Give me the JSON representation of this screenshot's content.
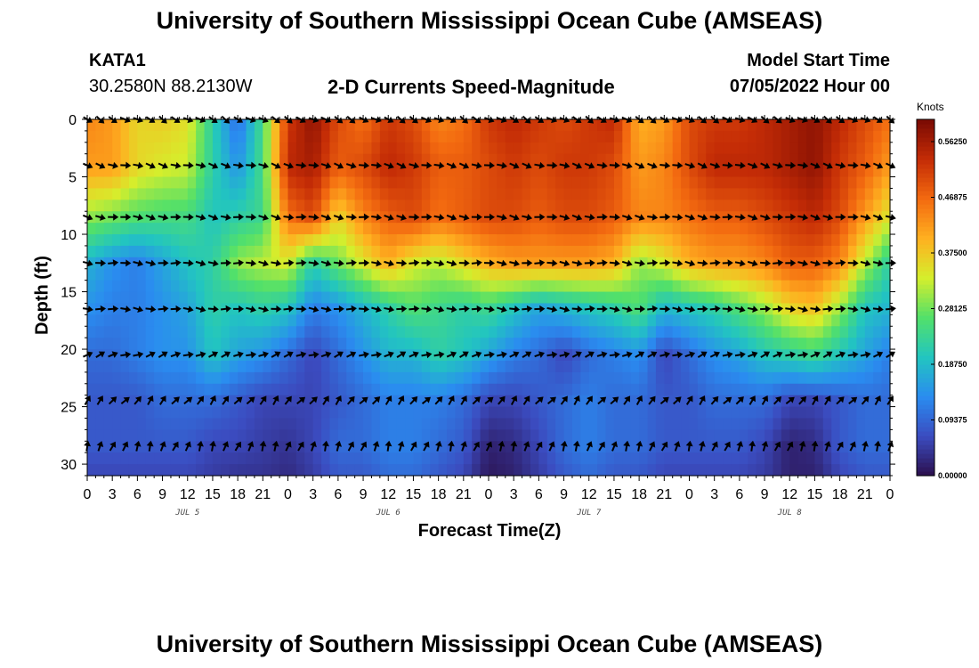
{
  "title": "University of Southern Mississippi Ocean Cube (AMSEAS)",
  "station": {
    "id": "KATA1",
    "coords": "30.2580N  88.2130W"
  },
  "subtitle": "2-D Currents Speed-Magnitude",
  "model": {
    "label": "Model Start Time",
    "value": "07/05/2022 Hour 00"
  },
  "footer_title": "University of Southern Mississippi Ocean Cube (AMSEAS)",
  "chart_data": {
    "type": "heatmap",
    "title": "2-D Currents Speed-Magnitude",
    "xlabel": "Forecast Time(Z)",
    "ylabel": "Depth (ft)",
    "x_unit": "hours from model start",
    "xlim": [
      0,
      96
    ],
    "ylim": [
      31,
      0
    ],
    "x_ticks": [
      0,
      3,
      6,
      9,
      12,
      15,
      18,
      21,
      24,
      27,
      30,
      33,
      36,
      39,
      42,
      45,
      48,
      51,
      54,
      57,
      60,
      63,
      66,
      69,
      72,
      75,
      78,
      81,
      84,
      87,
      90,
      93,
      96
    ],
    "x_tick_labels": [
      "0",
      "3",
      "6",
      "9",
      "12",
      "15",
      "18",
      "21",
      "0",
      "3",
      "6",
      "9",
      "12",
      "15",
      "18",
      "21",
      "0",
      "3",
      "6",
      "9",
      "12",
      "15",
      "18",
      "21",
      "0",
      "3",
      "6",
      "9",
      "12",
      "15",
      "18",
      "21",
      "0"
    ],
    "day_labels": [
      {
        "hour": 12,
        "text": "JUL 5"
      },
      {
        "hour": 36,
        "text": "JUL 6"
      },
      {
        "hour": 60,
        "text": "JUL 7"
      },
      {
        "hour": 84,
        "text": "JUL 8"
      }
    ],
    "y_ticks": [
      0,
      5,
      10,
      15,
      20,
      25,
      30
    ],
    "y_tick_labels": [
      "0",
      "5",
      "10",
      "15",
      "20",
      "25",
      "30"
    ],
    "colorbar": {
      "unit": "Knots",
      "min": 0.0,
      "max": 0.6,
      "tick_values": [
        0.0,
        0.09375,
        0.1875,
        0.28125,
        0.375,
        0.46875,
        0.5625
      ],
      "tick_labels": [
        "0.00000",
        "0.09375",
        "0.18750",
        "0.28125",
        "0.37500",
        "0.46875",
        "0.56250"
      ],
      "colors": [
        "#2b0f4c",
        "#3b4cc0",
        "#2a8cf0",
        "#22c5c0",
        "#52e06a",
        "#d5ee2c",
        "#ffb020",
        "#f36a10",
        "#c42c06",
        "#7a0a03"
      ]
    },
    "speed_anchor_hours": [
      0,
      3,
      6,
      9,
      12,
      15,
      18,
      21,
      24,
      27,
      30,
      33,
      36,
      39,
      42,
      45,
      48,
      51,
      54,
      57,
      60,
      63,
      66,
      69,
      72,
      75,
      78,
      81,
      84,
      87,
      90,
      93,
      96
    ],
    "speed_anchor_depths": [
      0,
      4,
      8.5,
      12.5,
      16.5,
      20.5,
      24.5,
      28.5,
      31
    ],
    "speed_knots": [
      [
        0.44,
        0.42,
        0.36,
        0.37,
        0.35,
        0.22,
        0.1,
        0.25,
        0.52,
        0.58,
        0.5,
        0.46,
        0.52,
        0.5,
        0.44,
        0.46,
        0.52,
        0.54,
        0.52,
        0.5,
        0.52,
        0.54,
        0.4,
        0.42,
        0.5,
        0.52,
        0.52,
        0.54,
        0.56,
        0.58,
        0.54,
        0.5,
        0.46
      ],
      [
        0.42,
        0.42,
        0.36,
        0.34,
        0.33,
        0.22,
        0.14,
        0.25,
        0.54,
        0.56,
        0.48,
        0.5,
        0.54,
        0.52,
        0.48,
        0.48,
        0.5,
        0.52,
        0.5,
        0.52,
        0.52,
        0.5,
        0.42,
        0.44,
        0.5,
        0.54,
        0.54,
        0.54,
        0.56,
        0.58,
        0.52,
        0.48,
        0.42
      ],
      [
        0.3,
        0.28,
        0.26,
        0.25,
        0.25,
        0.2,
        0.22,
        0.24,
        0.46,
        0.5,
        0.36,
        0.44,
        0.48,
        0.5,
        0.46,
        0.48,
        0.5,
        0.5,
        0.48,
        0.5,
        0.5,
        0.48,
        0.44,
        0.44,
        0.46,
        0.48,
        0.48,
        0.5,
        0.52,
        0.54,
        0.5,
        0.42,
        0.34
      ],
      [
        0.18,
        0.14,
        0.12,
        0.16,
        0.2,
        0.22,
        0.3,
        0.32,
        0.34,
        0.22,
        0.28,
        0.34,
        0.4,
        0.34,
        0.32,
        0.36,
        0.4,
        0.42,
        0.42,
        0.42,
        0.42,
        0.4,
        0.3,
        0.34,
        0.4,
        0.42,
        0.42,
        0.44,
        0.48,
        0.48,
        0.44,
        0.32,
        0.22
      ],
      [
        0.14,
        0.12,
        0.12,
        0.14,
        0.16,
        0.22,
        0.2,
        0.22,
        0.2,
        0.12,
        0.14,
        0.18,
        0.22,
        0.26,
        0.24,
        0.22,
        0.24,
        0.2,
        0.16,
        0.18,
        0.2,
        0.22,
        0.26,
        0.18,
        0.2,
        0.22,
        0.26,
        0.3,
        0.36,
        0.38,
        0.3,
        0.2,
        0.18
      ],
      [
        0.1,
        0.1,
        0.12,
        0.14,
        0.14,
        0.2,
        0.16,
        0.14,
        0.1,
        0.06,
        0.1,
        0.14,
        0.18,
        0.18,
        0.22,
        0.2,
        0.16,
        0.12,
        0.1,
        0.06,
        0.1,
        0.12,
        0.14,
        0.06,
        0.1,
        0.14,
        0.16,
        0.2,
        0.22,
        0.24,
        0.2,
        0.16,
        0.12
      ],
      [
        0.08,
        0.08,
        0.08,
        0.1,
        0.1,
        0.1,
        0.08,
        0.06,
        0.06,
        0.06,
        0.08,
        0.1,
        0.12,
        0.12,
        0.12,
        0.1,
        0.06,
        0.06,
        0.08,
        0.1,
        0.12,
        0.1,
        0.1,
        0.08,
        0.08,
        0.1,
        0.1,
        0.1,
        0.06,
        0.06,
        0.08,
        0.1,
        0.1
      ],
      [
        0.08,
        0.08,
        0.08,
        0.08,
        0.08,
        0.06,
        0.06,
        0.05,
        0.04,
        0.06,
        0.1,
        0.1,
        0.12,
        0.12,
        0.1,
        0.08,
        0.02,
        0.03,
        0.06,
        0.1,
        0.12,
        0.1,
        0.1,
        0.08,
        0.08,
        0.08,
        0.08,
        0.06,
        0.02,
        0.03,
        0.08,
        0.1,
        0.1
      ],
      [
        0.06,
        0.06,
        0.06,
        0.06,
        0.06,
        0.05,
        0.04,
        0.04,
        0.03,
        0.05,
        0.08,
        0.08,
        0.1,
        0.1,
        0.08,
        0.06,
        0.01,
        0.02,
        0.05,
        0.08,
        0.1,
        0.08,
        0.08,
        0.06,
        0.06,
        0.06,
        0.06,
        0.05,
        0.02,
        0.02,
        0.06,
        0.08,
        0.08
      ]
    ],
    "vector_depths": [
      0,
      4,
      8.5,
      12.5,
      16.5,
      20.5,
      24.5,
      28.5
    ],
    "vector_hours": [
      0,
      1.5,
      3,
      4.5,
      6,
      7.5,
      9,
      10.5,
      12,
      13.5,
      15,
      16.5,
      18,
      19.5,
      21,
      22.5,
      24,
      25.5,
      27,
      28.5,
      30,
      31.5,
      33,
      34.5,
      36,
      37.5,
      39,
      40.5,
      42,
      43.5,
      45,
      46.5,
      48,
      49.5,
      51,
      52.5,
      54,
      55.5,
      57,
      58.5,
      60,
      61.5,
      63,
      64.5,
      66,
      67.5,
      69,
      70.5,
      72,
      73.5,
      75,
      76.5,
      78,
      79.5,
      81,
      82.5,
      84,
      85.5,
      87,
      88.5,
      90,
      91.5,
      93,
      94.5,
      96
    ],
    "vector_direction_deg_by_depth": [
      120,
      105,
      100,
      95,
      95,
      70,
      40,
      20
    ],
    "vector_direction_note": "degrees clockwise from north (up); representative direction per depth row"
  }
}
